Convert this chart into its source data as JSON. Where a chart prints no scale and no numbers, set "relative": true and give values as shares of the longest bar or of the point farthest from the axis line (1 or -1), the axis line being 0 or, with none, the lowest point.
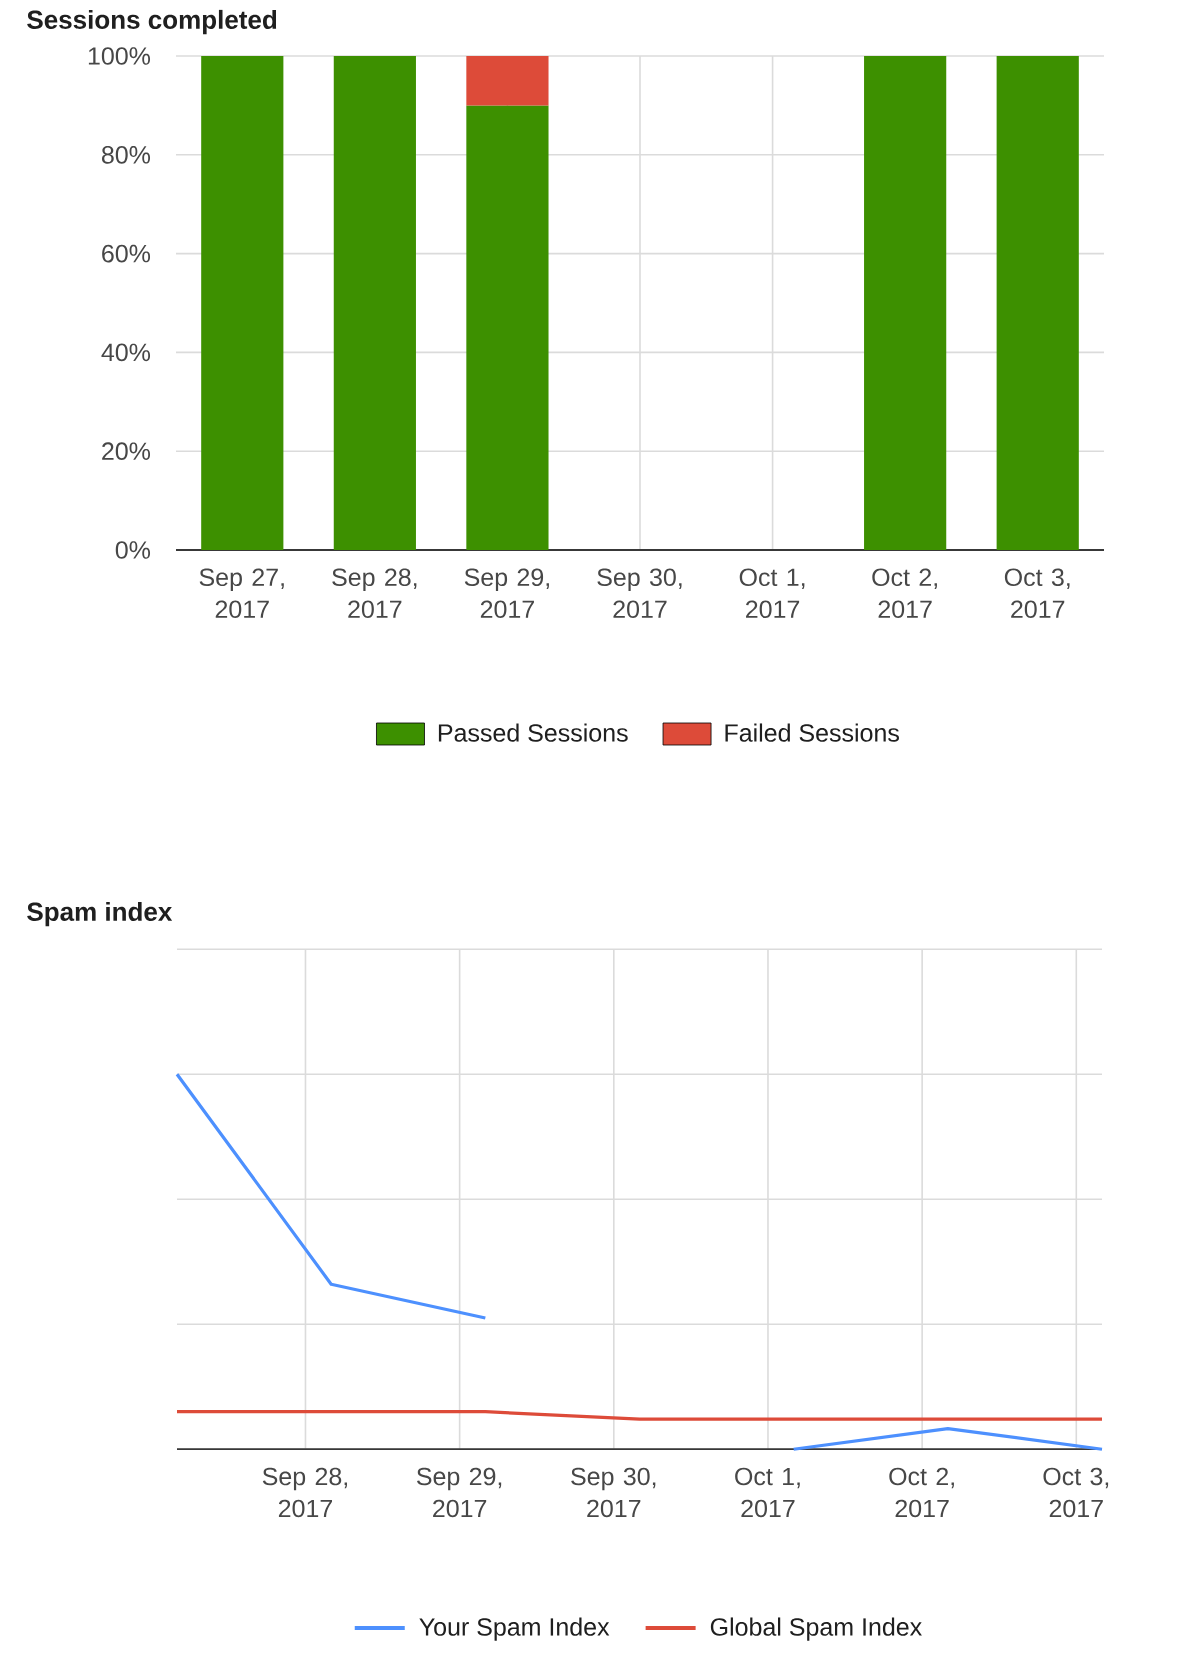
{
  "chart_data": [
    {
      "type": "bar",
      "title": "Sessions completed",
      "categories": [
        "Sep 27, 2017",
        "Sep 28, 2017",
        "Sep 29, 2017",
        "Sep 30, 2017",
        "Oct 1, 2017",
        "Oct 2, 2017",
        "Oct 3, 2017"
      ],
      "stacked": true,
      "series": [
        {
          "name": "Passed Sessions",
          "color": "#3d9000",
          "values": [
            100,
            100,
            90,
            null,
            null,
            100,
            100
          ]
        },
        {
          "name": "Failed Sessions",
          "color": "#dd4b39",
          "values": [
            null,
            null,
            10,
            null,
            null,
            null,
            null
          ]
        }
      ],
      "ylim": [
        0,
        100
      ],
      "yticks": [
        {
          "value": 0,
          "label": "0%"
        },
        {
          "value": 20,
          "label": "20%"
        },
        {
          "value": 40,
          "label": "40%"
        },
        {
          "value": 60,
          "label": "60%"
        },
        {
          "value": 80,
          "label": "80%"
        },
        {
          "value": 100,
          "label": "100%"
        }
      ],
      "grid": true,
      "legend": "bottom"
    },
    {
      "type": "line",
      "title": "Spam index",
      "relative": true,
      "x": [
        "2017-09-27T04:00",
        "2017-09-28T04:00",
        "2017-09-29T04:00",
        "2017-09-30T04:00",
        "2017-10-01T04:00",
        "2017-10-02T04:00",
        "2017-10-03T04:00"
      ],
      "series": [
        {
          "name": "Your Spam Index",
          "color": "#4d90fe",
          "values": [
            1,
            0.44,
            0.35,
            null,
            0,
            0.055,
            0
          ]
        },
        {
          "name": "Global Spam Index",
          "color": "#dd4b39",
          "values": [
            0.1,
            0.1,
            0.1,
            0.08,
            0.08,
            0.08,
            0.08
          ]
        }
      ],
      "xlim": [
        "2017-09-27T04:00",
        "2017-10-03T04:00"
      ],
      "xticks": [
        {
          "value": "2017-09-28",
          "label": "Sep 28, 2017"
        },
        {
          "value": "2017-09-29",
          "label": "Sep 29, 2017"
        },
        {
          "value": "2017-09-30",
          "label": "Sep 30, 2017"
        },
        {
          "value": "2017-10-01",
          "label": "Oct 1, 2017"
        },
        {
          "value": "2017-10-02",
          "label": "Oct 2, 2017"
        },
        {
          "value": "2017-10-03",
          "label": "Oct 3, 2017"
        }
      ],
      "grid": true,
      "legend": "bottom"
    }
  ]
}
